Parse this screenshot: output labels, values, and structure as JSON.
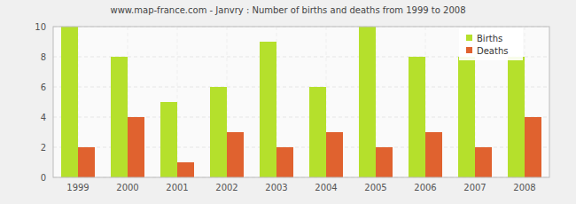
{
  "chart_data": {
    "type": "bar",
    "title": "www.map-france.com - Janvry : Number of births and deaths from 1999 to 2008",
    "categories": [
      "1999",
      "2000",
      "2001",
      "2002",
      "2003",
      "2004",
      "2005",
      "2006",
      "2007",
      "2008"
    ],
    "series": [
      {
        "name": "Births",
        "color": "#b5e02c",
        "values": [
          10,
          8,
          5,
          6,
          9,
          6,
          10,
          8,
          8,
          8
        ]
      },
      {
        "name": "Deaths",
        "color": "#e0622f",
        "values": [
          2,
          4,
          1,
          3,
          2,
          3,
          2,
          3,
          2,
          4
        ]
      }
    ],
    "ylim": [
      0,
      10
    ],
    "yticks": [
      0,
      2,
      4,
      6,
      8,
      10
    ],
    "grid": true,
    "legend": "top-right"
  }
}
